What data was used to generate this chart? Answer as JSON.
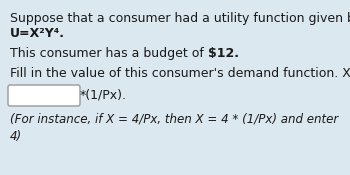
{
  "bg_color": "#dce8ef",
  "text_color": "#1a1a1a",
  "line1": "Suppose that a consumer had a utility function given by:",
  "line2": "U=X²Y⁴.",
  "line3_part1": "This consumer has a budget of ",
  "line3_part2": "$12.",
  "line4": "Fill in the value of this consumer's demand function. X =",
  "line5_suffix": "*(1/Px).",
  "line6": "(For instance, if X = 4/Px, then X = 4 * (1/Px) and enter",
  "line7": "4)",
  "font_size": 9.0,
  "font_size_bold": 9.0,
  "font_size_italic": 8.6
}
